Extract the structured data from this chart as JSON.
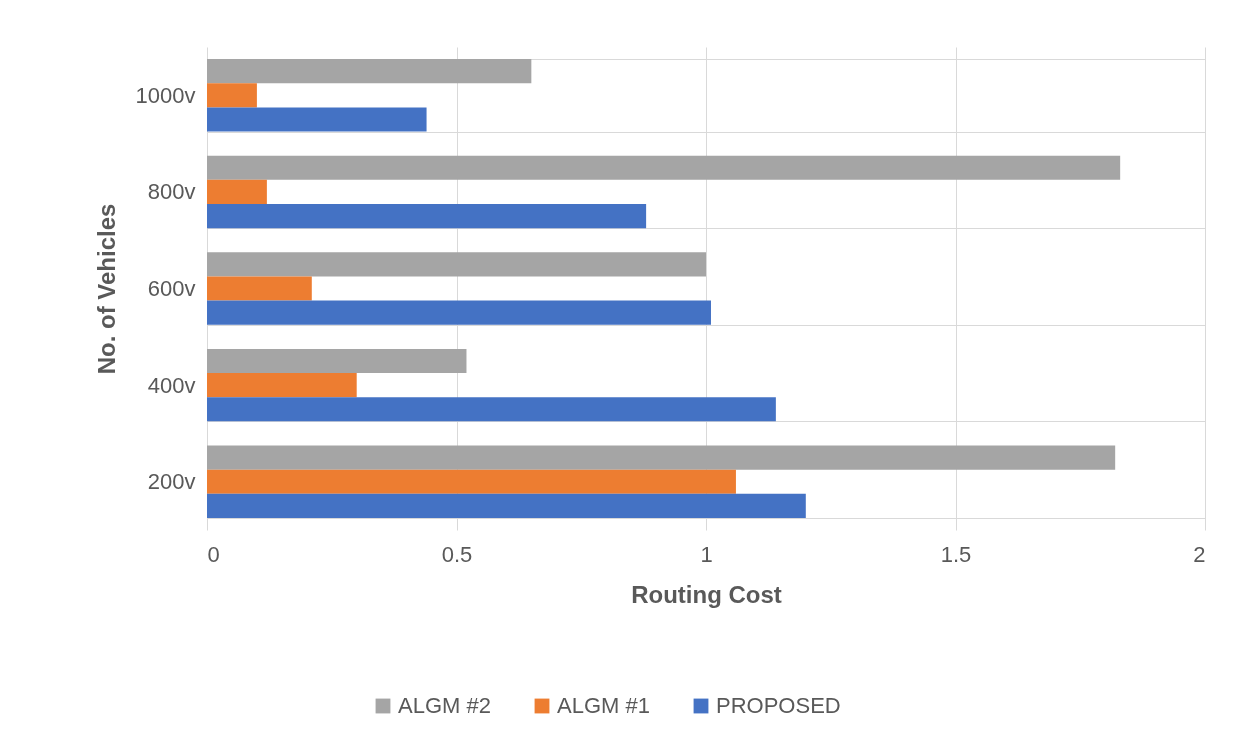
{
  "chart_data": {
    "type": "bar",
    "orientation": "horizontal",
    "xlabel": "Routing Cost",
    "ylabel": "No. of Vehicles",
    "categories": [
      "1000v",
      "800v",
      "600v",
      "400v",
      "200v"
    ],
    "series": [
      {
        "name": "ALGM #2",
        "color": "#a5a5a5",
        "values": [
          0.65,
          1.83,
          1.0,
          0.52,
          1.82
        ]
      },
      {
        "name": "ALGM #1",
        "color": "#ed7d31",
        "values": [
          0.1,
          0.12,
          0.21,
          0.3,
          1.06
        ]
      },
      {
        "name": "PROPOSED",
        "color": "#4472c4",
        "values": [
          0.44,
          0.88,
          1.01,
          1.14,
          1.2
        ]
      }
    ],
    "xlim": [
      0,
      2
    ],
    "xticks": [
      0,
      0.5,
      1,
      1.5,
      2
    ],
    "grid": true,
    "legend": "bottom"
  }
}
